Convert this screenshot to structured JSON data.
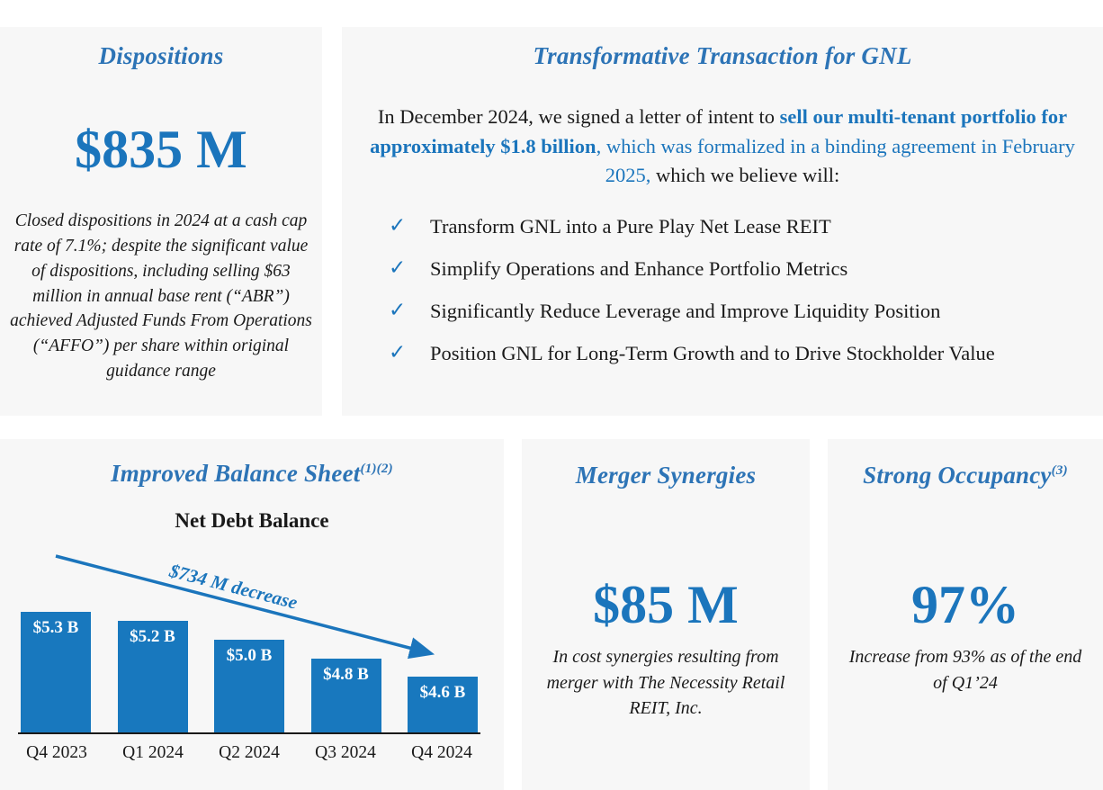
{
  "colors": {
    "accent_blue": "#1B75BC",
    "title_blue": "#2D74B6",
    "bar_blue": "#1878BE",
    "panel_background": "#F7F7F7",
    "text_black": "#1A1A1A"
  },
  "dispositions": {
    "title": "Dispositions",
    "value": "$835 M",
    "description": "Closed dispositions in 2024 at a cash cap rate of 7.1%; despite the significant value of dispositions, including selling $63 million in annual base rent (“ABR”) achieved Adjusted Funds From Operations (“AFFO”) per share within original guidance range"
  },
  "transaction": {
    "title": "Transformative Transaction for GNL",
    "intro_parts": [
      {
        "text": "In December 2024, we signed a letter of intent to ",
        "style": "black"
      },
      {
        "text": "sell our multi-tenant portfolio for approximately $1.8 billion",
        "style": "blue-bold"
      },
      {
        "text": ", which was formalized in a binding agreement in February 2025,",
        "style": "blue"
      },
      {
        "text": " which we believe will:",
        "style": "black"
      }
    ],
    "check_icon": "✓",
    "bullets": [
      "Transform GNL into a Pure Play Net Lease REIT",
      "Simplify Operations and Enhance Portfolio Metrics",
      "Significantly Reduce Leverage and Improve Liquidity Position",
      "Position GNL for Long-Term Growth and to Drive Stockholder Value"
    ]
  },
  "balance_sheet": {
    "title": "Improved Balance Sheet",
    "title_superscript": "(1)(2)"
  },
  "chart_data": {
    "type": "bar",
    "title": "Net Debt Balance",
    "categories": [
      "Q4 2023",
      "Q1 2024",
      "Q2 2024",
      "Q3 2024",
      "Q4 2024"
    ],
    "values": [
      5.3,
      5.2,
      5.0,
      4.8,
      4.6
    ],
    "value_labels": [
      "$5.3 B",
      "$5.2 B",
      "$5.0 B",
      "$4.8 B",
      "$4.6 B"
    ],
    "unit": "USD billions",
    "annotation": "$734 M decrease",
    "ylim": [
      4.0,
      5.3
    ],
    "grid": false,
    "legend": "none"
  },
  "merger": {
    "title": "Merger Synergies",
    "value": "$85 M",
    "description": "In cost synergies resulting from merger with The Necessity Retail REIT, Inc."
  },
  "occupancy": {
    "title": "Strong Occupancy",
    "title_superscript": "(3)",
    "value": "97%",
    "description": "Increase from 93% as of the end of Q1’24"
  }
}
